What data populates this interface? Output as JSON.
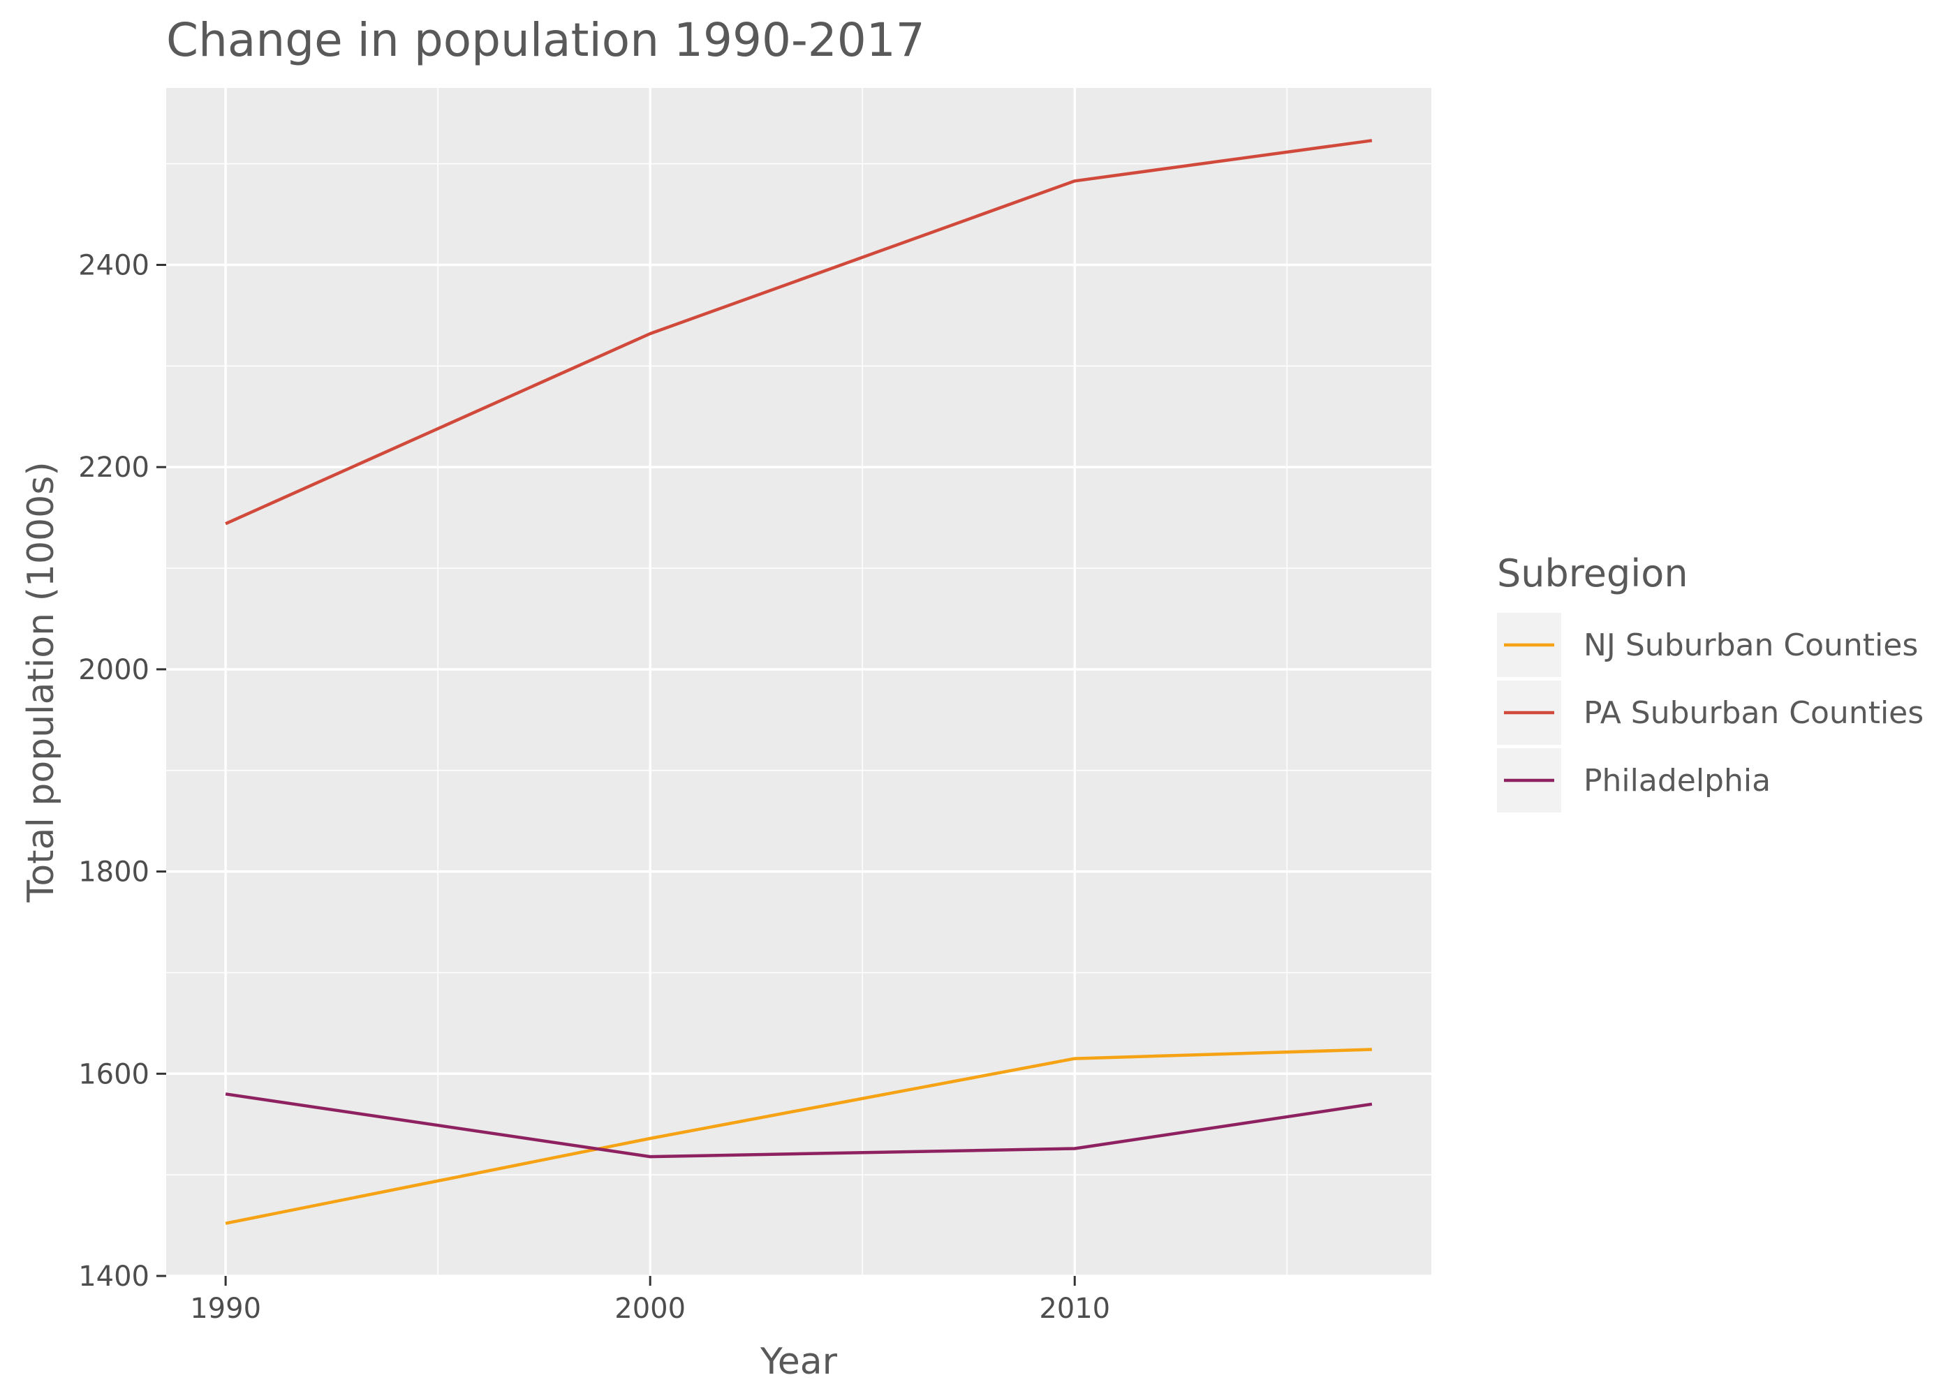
{
  "title": "Change in population 1990-2017",
  "x_axis_title": "Year",
  "y_axis_title": "Total population (1000s)",
  "legend": {
    "title": "Subregion",
    "placement": "right"
  },
  "chart_data": {
    "type": "line",
    "title": "Change in population 1990-2017",
    "xlabel": "Year",
    "ylabel": "Total population (1000s)",
    "xlim": [
      1988.6,
      2018.4
    ],
    "ylim": [
      1400,
      2575
    ],
    "x_ticks": [
      1990,
      2000,
      2010
    ],
    "y_ticks": [
      1400,
      1600,
      1800,
      2000,
      2200,
      2400
    ],
    "grid": true,
    "background": "#EBEBEB",
    "series": [
      {
        "name": "NJ Suburban Counties",
        "color": "#F5A214",
        "x": [
          1990,
          2000,
          2010,
          2017
        ],
        "y": [
          1452,
          1536,
          1615,
          1624
        ]
      },
      {
        "name": "PA Suburban Counties",
        "color": "#D1493A",
        "x": [
          1990,
          2000,
          2010,
          2017
        ],
        "y": [
          2144,
          2332,
          2483,
          2523
        ]
      },
      {
        "name": "Philadelphia",
        "color": "#8E2160",
        "x": [
          1990,
          2000,
          2010,
          2017
        ],
        "y": [
          1580,
          1518,
          1526,
          1570
        ]
      }
    ]
  }
}
